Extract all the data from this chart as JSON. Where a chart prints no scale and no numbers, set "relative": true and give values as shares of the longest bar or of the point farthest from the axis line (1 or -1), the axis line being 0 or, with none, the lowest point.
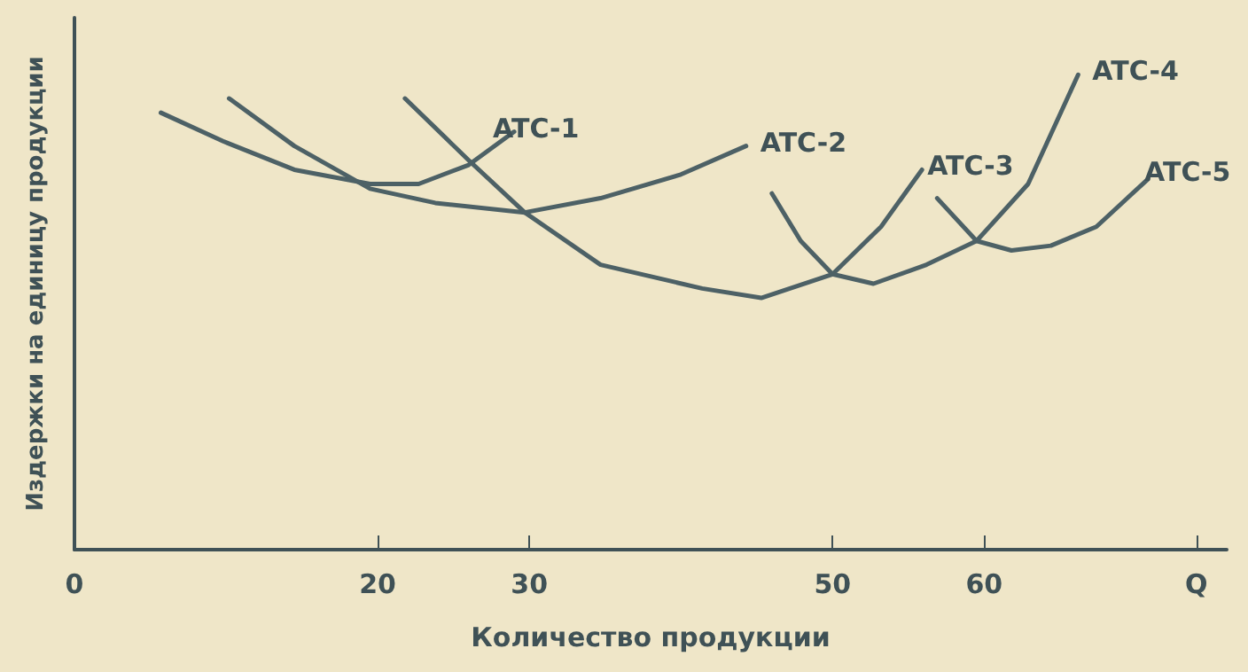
{
  "chart_data": {
    "type": "line",
    "relative": true,
    "xlabel": "Количество продукции",
    "ylabel": "Издержки на единицу продукции",
    "xlim": [
      0,
      76
    ],
    "xticks": [
      0,
      20,
      30,
      50,
      60,
      {
        "value": 74,
        "label": "Q"
      }
    ],
    "series": [
      {
        "name": "ATC-1",
        "color": "#4d6166",
        "x": [
          5.7,
          9.8,
          14.5,
          19.5,
          22.7,
          26.0,
          29.0
        ],
        "values": [
          0.92,
          0.86,
          0.8,
          0.77,
          0.77,
          0.81,
          0.88
        ]
      },
      {
        "name": "ATC-2",
        "color": "#4d6166",
        "x": [
          10.2,
          14.5,
          19.5,
          23.8,
          29.7,
          34.7,
          40.0,
          44.3
        ],
        "values": [
          0.95,
          0.85,
          0.76,
          0.73,
          0.71,
          0.74,
          0.79,
          0.85
        ]
      },
      {
        "name": "ATC-3",
        "color": "#4d6166",
        "x": [
          21.8,
          26.0,
          29.7,
          34.7,
          41.4,
          45.3,
          50,
          53.2,
          55.9
        ],
        "values": [
          0.95,
          0.82,
          0.71,
          0.6,
          0.55,
          0.53,
          0.58,
          0.68,
          0.8
        ]
      },
      {
        "name": "ATC-4",
        "color": "#4d6166",
        "x": [
          46.0,
          47.9,
          50,
          52.7,
          56.2,
          59.5,
          62.9,
          66.2
        ],
        "values": [
          0.75,
          0.65,
          0.58,
          0.56,
          0.6,
          0.65,
          0.77,
          1
        ]
      },
      {
        "name": "ATC-5",
        "color": "#4d6166",
        "x": [
          56.9,
          59.5,
          61.8,
          64.4,
          67.4,
          70.8
        ],
        "values": [
          0.74,
          0.65,
          0.63,
          0.64,
          0.68,
          0.78
        ]
      }
    ],
    "legend": false,
    "grid": false,
    "marker": "none",
    "line_style": "solid"
  }
}
